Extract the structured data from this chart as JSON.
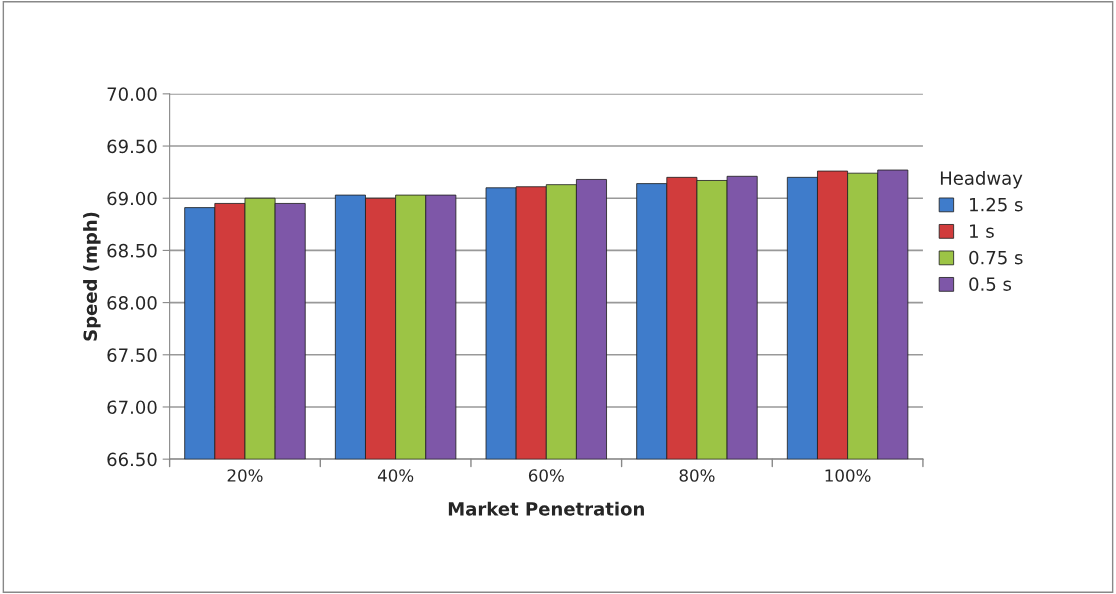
{
  "chart_data": {
    "type": "bar",
    "xlabel": "Market Penetration",
    "ylabel": "Speed (mph)",
    "legend_title": "Headway",
    "categories": [
      "20%",
      "40%",
      "60%",
      "80%",
      "100%"
    ],
    "series": [
      {
        "name": "1.25 s",
        "color": "#3f7ccb",
        "values": [
          68.91,
          69.03,
          69.1,
          69.14,
          69.2
        ]
      },
      {
        "name": "1 s",
        "color": "#d13c3c",
        "values": [
          68.95,
          69.0,
          69.11,
          69.2,
          69.26
        ]
      },
      {
        "name": "0.75 s",
        "color": "#9cc445",
        "values": [
          69.0,
          69.03,
          69.13,
          69.17,
          69.24
        ]
      },
      {
        "name": "0.5 s",
        "color": "#7e57a8",
        "values": [
          68.95,
          69.03,
          69.18,
          69.21,
          69.27
        ]
      }
    ],
    "ylim": [
      66.5,
      70.0
    ],
    "yticks": [
      {
        "value": 66.5,
        "label": "66.50"
      },
      {
        "value": 67.0,
        "label": "67.00"
      },
      {
        "value": 67.5,
        "label": "67.50"
      },
      {
        "value": 68.0,
        "label": "68.00"
      },
      {
        "value": 68.5,
        "label": "68.50"
      },
      {
        "value": 69.0,
        "label": "69.00"
      },
      {
        "value": 69.5,
        "label": "69.50"
      },
      {
        "value": 70.0,
        "label": "70.00"
      }
    ],
    "grid": "y",
    "legend": "right"
  }
}
